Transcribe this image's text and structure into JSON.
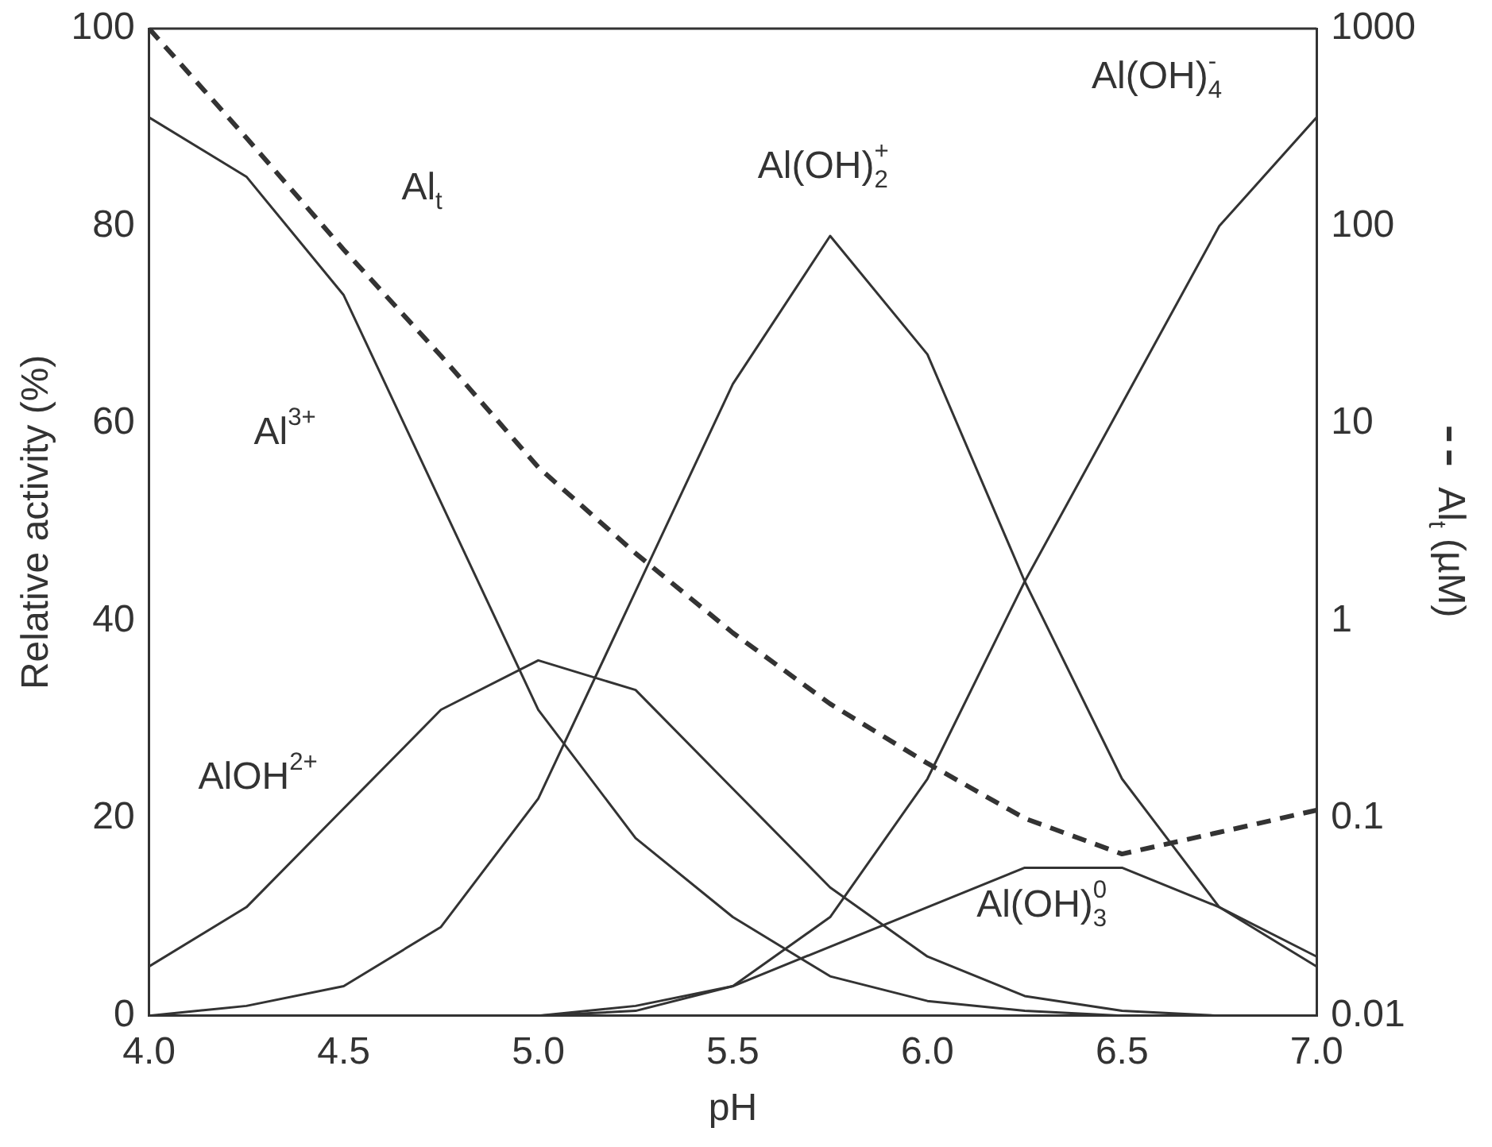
{
  "chart_data": {
    "type": "line",
    "xlabel": "pH",
    "ylabel": "Relative activity (%)",
    "y2label": "Al$_{t}$ (µM)",
    "x": [
      4.0,
      4.25,
      4.5,
      4.75,
      5.0,
      5.25,
      5.5,
      5.75,
      6.0,
      6.25,
      6.5,
      6.75,
      7.0
    ],
    "series": [
      {
        "name": "Al$^{3+}$",
        "color": "#333333",
        "values": [
          91,
          85,
          73,
          52,
          31,
          18,
          10,
          4,
          1.5,
          0.5,
          0,
          0,
          0
        ]
      },
      {
        "name": "AlOH$^{2+}$",
        "color": "#333333",
        "values": [
          5,
          11,
          21,
          31,
          36,
          33,
          23,
          13,
          6,
          2,
          0.5,
          0,
          0
        ]
      },
      {
        "name": "Al(OH)$_{2}$$^{+}$",
        "color": "#333333",
        "values": [
          0,
          1,
          3,
          9,
          22,
          43,
          64,
          79,
          67,
          44,
          24,
          11,
          5
        ]
      },
      {
        "name": "Al(OH)$_{3}$$^{0}$",
        "color": "#333333",
        "values": [
          0,
          0,
          0,
          0,
          0,
          1,
          3,
          7,
          11,
          15,
          15,
          11,
          6
        ]
      },
      {
        "name": "Al(OH)$_{4}$$^{-}$",
        "color": "#333333",
        "values": [
          0,
          0,
          0,
          0,
          0,
          0.5,
          3,
          10,
          24,
          44,
          62,
          80,
          91
        ]
      },
      {
        "name": "Al$_{t}$",
        "color": "#333333",
        "axis": "y2",
        "line_style": "dashed",
        "values": [
          1000,
          280,
          76,
          22,
          6,
          2.2,
          0.87,
          0.38,
          0.19,
          0.1,
          0.066,
          0.085,
          0.11
        ]
      }
    ],
    "xlim": [
      4,
      7
    ],
    "xticks": [
      {
        "value": 4,
        "label": "4.0"
      },
      {
        "value": 4.5,
        "label": "4.5"
      },
      {
        "value": 5,
        "label": "5.0"
      },
      {
        "value": 5.5,
        "label": "5.5"
      },
      {
        "value": 6,
        "label": "6.0"
      },
      {
        "value": 6.5,
        "label": "6.5"
      },
      {
        "value": 7,
        "label": "7.0"
      }
    ],
    "ylim": [
      0,
      100
    ],
    "yticks": [
      0,
      20,
      40,
      60,
      80,
      100
    ],
    "y2lim": [
      0.01,
      1000
    ],
    "y2ticks": [
      0.01,
      0.1,
      1,
      10,
      100,
      1000
    ],
    "log": "y2",
    "grid": false,
    "legend": false,
    "marker": "none",
    "line_style": "solid"
  }
}
